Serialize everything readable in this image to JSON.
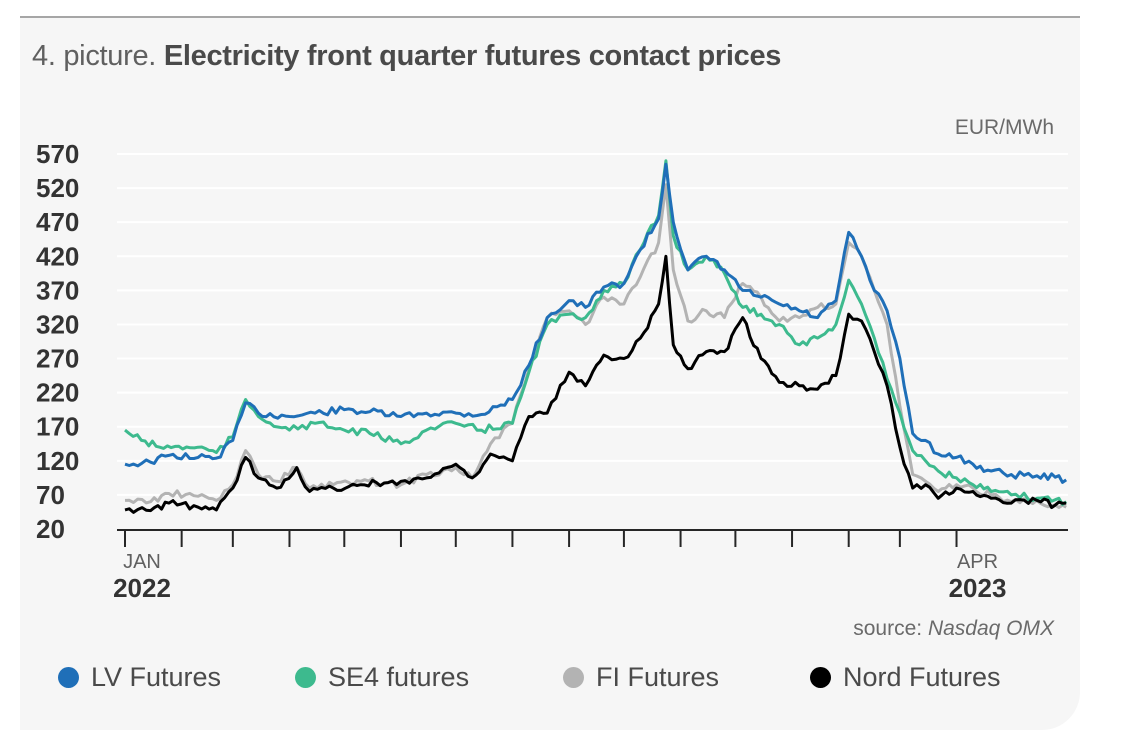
{
  "title": {
    "prefix": "4. picture.",
    "main": "Electricity front quarter futures contact prices"
  },
  "unit": "EUR/MWh",
  "source": {
    "prefix": "source:",
    "name": "Nasdaq OMX"
  },
  "colors": {
    "lv": "#1f6fb8",
    "se4": "#3dba8e",
    "fi": "#b3b3b3",
    "nord": "#000000",
    "grid": "#ffffff",
    "axis": "#262626",
    "text": "#333333"
  },
  "chart_data": {
    "type": "line",
    "y_ticks": [
      20,
      70,
      120,
      170,
      220,
      270,
      320,
      370,
      420,
      470,
      520,
      570
    ],
    "ylim": [
      20,
      570
    ],
    "x_start_labels": [
      "JAN",
      "2022"
    ],
    "x_end_labels": [
      "APR",
      "2023"
    ],
    "x_months": [
      "2022-01",
      "2022-02",
      "2022-03",
      "2022-04",
      "2022-05",
      "2022-06",
      "2022-07",
      "2022-08",
      "2022-09",
      "2022-10",
      "2022-11",
      "2022-12",
      "2023-01",
      "2023-02",
      "2023-03",
      "2023-04"
    ],
    "series": [
      {
        "name": "LV Futures",
        "color": "#1f6fb8",
        "points": [
          [
            "2022-01-01",
            115
          ],
          [
            "2022-01-15",
            118
          ],
          [
            "2022-01-25",
            128
          ],
          [
            "2022-02-10",
            125
          ],
          [
            "2022-02-20",
            124
          ],
          [
            "2022-03-01",
            150
          ],
          [
            "2022-03-08",
            205
          ],
          [
            "2022-03-15",
            190
          ],
          [
            "2022-04-01",
            185
          ],
          [
            "2022-04-15",
            190
          ],
          [
            "2022-05-01",
            195
          ],
          [
            "2022-05-15",
            192
          ],
          [
            "2022-06-01",
            185
          ],
          [
            "2022-06-15",
            190
          ],
          [
            "2022-07-01",
            190
          ],
          [
            "2022-07-15",
            188
          ],
          [
            "2022-08-01",
            210
          ],
          [
            "2022-08-10",
            260
          ],
          [
            "2022-08-20",
            330
          ],
          [
            "2022-09-01",
            355
          ],
          [
            "2022-09-10",
            345
          ],
          [
            "2022-09-20",
            375
          ],
          [
            "2022-10-01",
            380
          ],
          [
            "2022-10-10",
            430
          ],
          [
            "2022-10-20",
            475
          ],
          [
            "2022-10-24",
            555
          ],
          [
            "2022-10-28",
            470
          ],
          [
            "2022-11-05",
            400
          ],
          [
            "2022-11-15",
            420
          ],
          [
            "2022-11-25",
            400
          ],
          [
            "2022-12-05",
            370
          ],
          [
            "2022-12-15",
            360
          ],
          [
            "2022-12-25",
            350
          ],
          [
            "2023-01-05",
            340
          ],
          [
            "2023-01-15",
            330
          ],
          [
            "2023-01-25",
            355
          ],
          [
            "2023-02-01",
            455
          ],
          [
            "2023-02-08",
            420
          ],
          [
            "2023-02-15",
            370
          ],
          [
            "2023-02-22",
            340
          ],
          [
            "2023-03-01",
            270
          ],
          [
            "2023-03-08",
            160
          ],
          [
            "2023-03-15",
            150
          ],
          [
            "2023-03-22",
            130
          ],
          [
            "2023-04-01",
            125
          ],
          [
            "2023-04-10",
            115
          ],
          [
            "2023-04-20",
            105
          ],
          [
            "2023-05-01",
            100
          ],
          [
            "2023-05-15",
            98
          ],
          [
            "2023-05-25",
            96
          ],
          [
            "2023-05-31",
            92
          ]
        ]
      },
      {
        "name": "SE4 futures",
        "color": "#3dba8e",
        "points": [
          [
            "2022-01-01",
            165
          ],
          [
            "2022-01-10",
            150
          ],
          [
            "2022-01-20",
            140
          ],
          [
            "2022-02-10",
            140
          ],
          [
            "2022-02-20",
            132
          ],
          [
            "2022-03-01",
            155
          ],
          [
            "2022-03-08",
            210
          ],
          [
            "2022-03-15",
            185
          ],
          [
            "2022-04-01",
            165
          ],
          [
            "2022-04-15",
            175
          ],
          [
            "2022-05-01",
            165
          ],
          [
            "2022-05-15",
            160
          ],
          [
            "2022-06-01",
            145
          ],
          [
            "2022-06-15",
            165
          ],
          [
            "2022-07-01",
            175
          ],
          [
            "2022-07-15",
            165
          ],
          [
            "2022-08-01",
            175
          ],
          [
            "2022-08-10",
            250
          ],
          [
            "2022-08-20",
            320
          ],
          [
            "2022-09-01",
            335
          ],
          [
            "2022-09-10",
            330
          ],
          [
            "2022-09-20",
            370
          ],
          [
            "2022-10-01",
            380
          ],
          [
            "2022-10-10",
            430
          ],
          [
            "2022-10-20",
            480
          ],
          [
            "2022-10-24",
            560
          ],
          [
            "2022-10-28",
            450
          ],
          [
            "2022-11-05",
            400
          ],
          [
            "2022-11-15",
            420
          ],
          [
            "2022-11-25",
            395
          ],
          [
            "2022-12-05",
            345
          ],
          [
            "2022-12-15",
            335
          ],
          [
            "2022-12-25",
            320
          ],
          [
            "2023-01-05",
            290
          ],
          [
            "2023-01-15",
            300
          ],
          [
            "2023-01-25",
            320
          ],
          [
            "2023-02-01",
            385
          ],
          [
            "2023-02-08",
            350
          ],
          [
            "2023-02-15",
            300
          ],
          [
            "2023-02-22",
            240
          ],
          [
            "2023-03-01",
            190
          ],
          [
            "2023-03-08",
            135
          ],
          [
            "2023-03-15",
            120
          ],
          [
            "2023-03-22",
            105
          ],
          [
            "2023-04-01",
            95
          ],
          [
            "2023-04-10",
            85
          ],
          [
            "2023-04-20",
            75
          ],
          [
            "2023-05-01",
            70
          ],
          [
            "2023-05-15",
            65
          ],
          [
            "2023-05-25",
            63
          ],
          [
            "2023-05-31",
            60
          ]
        ]
      },
      {
        "name": "FI Futures",
        "color": "#b3b3b3",
        "points": [
          [
            "2022-01-01",
            62
          ],
          [
            "2022-01-15",
            60
          ],
          [
            "2022-01-25",
            72
          ],
          [
            "2022-02-10",
            68
          ],
          [
            "2022-02-20",
            62
          ],
          [
            "2022-03-01",
            85
          ],
          [
            "2022-03-08",
            135
          ],
          [
            "2022-03-15",
            100
          ],
          [
            "2022-03-25",
            90
          ],
          [
            "2022-04-05",
            110
          ],
          [
            "2022-04-12",
            80
          ],
          [
            "2022-04-25",
            85
          ],
          [
            "2022-05-10",
            90
          ],
          [
            "2022-05-25",
            88
          ],
          [
            "2022-06-01",
            85
          ],
          [
            "2022-06-15",
            100
          ],
          [
            "2022-07-01",
            110
          ],
          [
            "2022-07-10",
            95
          ],
          [
            "2022-07-20",
            145
          ],
          [
            "2022-08-01",
            175
          ],
          [
            "2022-08-10",
            255
          ],
          [
            "2022-08-20",
            330
          ],
          [
            "2022-09-01",
            340
          ],
          [
            "2022-09-10",
            320
          ],
          [
            "2022-09-20",
            360
          ],
          [
            "2022-10-01",
            350
          ],
          [
            "2022-10-10",
            390
          ],
          [
            "2022-10-20",
            440
          ],
          [
            "2022-10-24",
            525
          ],
          [
            "2022-10-28",
            400
          ],
          [
            "2022-11-05",
            325
          ],
          [
            "2022-11-15",
            340
          ],
          [
            "2022-11-25",
            330
          ],
          [
            "2022-12-05",
            380
          ],
          [
            "2022-12-15",
            360
          ],
          [
            "2022-12-25",
            325
          ],
          [
            "2023-01-05",
            330
          ],
          [
            "2023-01-15",
            345
          ],
          [
            "2023-01-25",
            350
          ],
          [
            "2023-02-01",
            440
          ],
          [
            "2023-02-08",
            420
          ],
          [
            "2023-02-15",
            370
          ],
          [
            "2023-02-22",
            320
          ],
          [
            "2023-03-01",
            200
          ],
          [
            "2023-03-08",
            100
          ],
          [
            "2023-03-15",
            90
          ],
          [
            "2023-03-22",
            75
          ],
          [
            "2023-04-01",
            85
          ],
          [
            "2023-04-10",
            80
          ],
          [
            "2023-04-20",
            70
          ],
          [
            "2023-05-01",
            60
          ],
          [
            "2023-05-15",
            62
          ],
          [
            "2023-05-25",
            55
          ],
          [
            "2023-05-31",
            52
          ]
        ]
      },
      {
        "name": "Nord Futures",
        "color": "#000000",
        "points": [
          [
            "2022-01-01",
            48
          ],
          [
            "2022-01-15",
            47
          ],
          [
            "2022-01-25",
            58
          ],
          [
            "2022-02-10",
            52
          ],
          [
            "2022-02-20",
            48
          ],
          [
            "2022-03-01",
            80
          ],
          [
            "2022-03-08",
            125
          ],
          [
            "2022-03-15",
            95
          ],
          [
            "2022-03-25",
            80
          ],
          [
            "2022-04-05",
            110
          ],
          [
            "2022-04-12",
            75
          ],
          [
            "2022-04-25",
            80
          ],
          [
            "2022-05-10",
            85
          ],
          [
            "2022-05-25",
            88
          ],
          [
            "2022-06-01",
            90
          ],
          [
            "2022-06-15",
            95
          ],
          [
            "2022-07-01",
            115
          ],
          [
            "2022-07-10",
            95
          ],
          [
            "2022-07-20",
            130
          ],
          [
            "2022-08-01",
            120
          ],
          [
            "2022-08-10",
            185
          ],
          [
            "2022-08-20",
            190
          ],
          [
            "2022-09-01",
            250
          ],
          [
            "2022-09-10",
            230
          ],
          [
            "2022-09-20",
            275
          ],
          [
            "2022-10-01",
            270
          ],
          [
            "2022-10-10",
            300
          ],
          [
            "2022-10-20",
            350
          ],
          [
            "2022-10-24",
            420
          ],
          [
            "2022-10-28",
            290
          ],
          [
            "2022-11-05",
            255
          ],
          [
            "2022-11-15",
            280
          ],
          [
            "2022-11-25",
            280
          ],
          [
            "2022-12-05",
            330
          ],
          [
            "2022-12-15",
            270
          ],
          [
            "2022-12-25",
            235
          ],
          [
            "2023-01-05",
            230
          ],
          [
            "2023-01-15",
            225
          ],
          [
            "2023-01-25",
            245
          ],
          [
            "2023-02-01",
            335
          ],
          [
            "2023-02-08",
            325
          ],
          [
            "2023-02-15",
            280
          ],
          [
            "2023-02-22",
            230
          ],
          [
            "2023-03-01",
            140
          ],
          [
            "2023-03-08",
            80
          ],
          [
            "2023-03-15",
            85
          ],
          [
            "2023-03-22",
            65
          ],
          [
            "2023-04-01",
            80
          ],
          [
            "2023-04-10",
            75
          ],
          [
            "2023-04-20",
            65
          ],
          [
            "2023-05-01",
            58
          ],
          [
            "2023-05-15",
            62
          ],
          [
            "2023-05-25",
            55
          ],
          [
            "2023-05-31",
            58
          ]
        ]
      }
    ]
  }
}
